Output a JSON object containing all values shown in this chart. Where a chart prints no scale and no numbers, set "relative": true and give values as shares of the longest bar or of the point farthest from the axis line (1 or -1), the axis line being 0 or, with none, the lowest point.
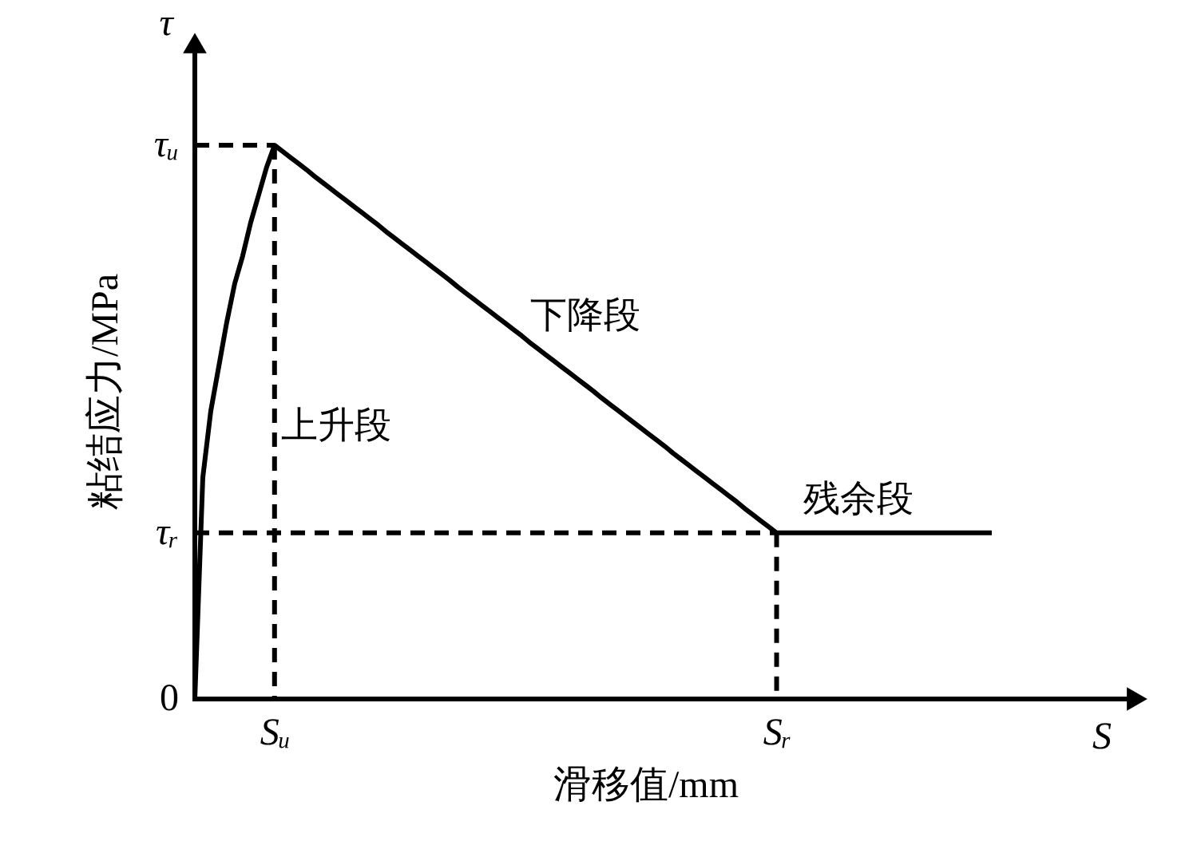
{
  "chart_data": {
    "type": "line",
    "relative": true,
    "xlabel": "滑移值/mm",
    "ylabel": "粘结应力/MPa",
    "categories": [
      null,
      null,
      null,
      null,
      null,
      null,
      null,
      null,
      null,
      null,
      "Sᵤ",
      null,
      null,
      null,
      null,
      null,
      null,
      null,
      null,
      null,
      null,
      null,
      null,
      null,
      null,
      null,
      null,
      null,
      null,
      null,
      null,
      null,
      null,
      null,
      null,
      null,
      null,
      null,
      null,
      null,
      null,
      null,
      null,
      null,
      null,
      null,
      null,
      null,
      null,
      null,
      null,
      null,
      null,
      null,
      null,
      null,
      null,
      null,
      null,
      null,
      null,
      null,
      null,
      null,
      null,
      null,
      null,
      null,
      null,
      null,
      null,
      null,
      null,
      "Sᵣ",
      null,
      null,
      null,
      null,
      null,
      null,
      null,
      null,
      null,
      null,
      null,
      null,
      null,
      null,
      null,
      null,
      null,
      null,
      null,
      null,
      null,
      null,
      null,
      null,
      null,
      null,
      null
    ],
    "series": [
      {
        "color": "#000000",
        "values": [
          0,
          0.4,
          0.52,
          0.6,
          0.68,
          0.75,
          0.8,
          0.86,
          0.91,
          0.96,
          1,
          0.989,
          0.978,
          0.967,
          0.956,
          0.944,
          0.933,
          0.922,
          0.911,
          0.9,
          0.889,
          0.878,
          0.867,
          0.856,
          0.844,
          0.833,
          0.822,
          0.811,
          0.8,
          0.789,
          0.778,
          0.767,
          0.756,
          0.744,
          0.733,
          0.722,
          0.711,
          0.7,
          0.689,
          0.678,
          0.667,
          0.656,
          0.644,
          0.633,
          0.622,
          0.611,
          0.6,
          0.589,
          0.578,
          0.567,
          0.556,
          0.544,
          0.533,
          0.522,
          0.511,
          0.5,
          0.489,
          0.478,
          0.467,
          0.456,
          0.444,
          0.433,
          0.422,
          0.411,
          0.4,
          0.389,
          0.378,
          0.367,
          0.356,
          0.344,
          0.333,
          0.322,
          0.311,
          0.3,
          0.3,
          0.3,
          0.3,
          0.3,
          0.3,
          0.3,
          0.3,
          0.3,
          0.3,
          0.3,
          0.3,
          0.3,
          0.3,
          0.3,
          0.3,
          0.3,
          0.3,
          0.3,
          0.3,
          0.3,
          0.3,
          0.3,
          0.3,
          0.3,
          0.3,
          0.3,
          0.3
        ]
      }
    ],
    "annotations": [
      "τ",
      "S",
      "上升段",
      "下降段",
      "残余段",
      "0",
      {
        "text": "τᵤ",
        "x": "Sᵤ",
        "y": 1
      },
      {
        "text": "τᵣ",
        "x": "Sᵣ",
        "y": 0.3
      }
    ]
  }
}
